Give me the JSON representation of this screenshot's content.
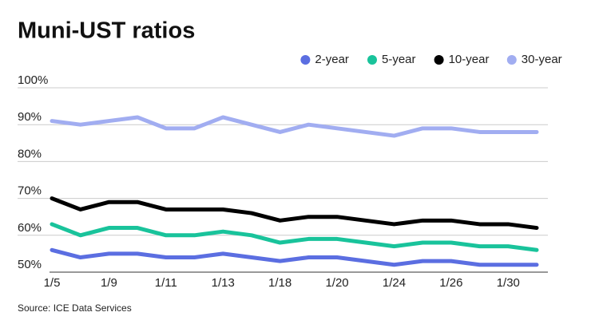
{
  "chart_data": {
    "type": "line",
    "title": "Muni-UST ratios",
    "source": "Source: ICE Data Services",
    "categories": [
      "1/5",
      null,
      "1/9",
      null,
      "1/11",
      null,
      "1/13",
      null,
      "1/18",
      null,
      "1/20",
      null,
      "1/24",
      null,
      "1/26",
      null,
      "1/30",
      null
    ],
    "series": [
      {
        "name": "2-year",
        "color": "#5b6ee1",
        "values": [
          56,
          54,
          55,
          55,
          54,
          54,
          55,
          54,
          53,
          54,
          54,
          53,
          52,
          53,
          53,
          52,
          52,
          52
        ]
      },
      {
        "name": "5-year",
        "color": "#19c39b",
        "values": [
          63,
          60,
          62,
          62,
          60,
          60,
          61,
          60,
          58,
          59,
          59,
          58,
          57,
          58,
          58,
          57,
          57,
          56
        ]
      },
      {
        "name": "10-year",
        "color": "#000000",
        "values": [
          70,
          67,
          69,
          69,
          67,
          67,
          67,
          66,
          64,
          65,
          65,
          64,
          63,
          64,
          64,
          63,
          63,
          62
        ]
      },
      {
        "name": "30-year",
        "color": "#a1adf1",
        "values": [
          91,
          90,
          91,
          92,
          89,
          89,
          92,
          90,
          88,
          90,
          89,
          88,
          87,
          89,
          89,
          88,
          88,
          88
        ]
      }
    ],
    "ylim": [
      50,
      100
    ],
    "yticks": [
      {
        "value": 50,
        "label": "50%"
      },
      {
        "value": 60,
        "label": "60%"
      },
      {
        "value": 70,
        "label": "70%"
      },
      {
        "value": 80,
        "label": "80%"
      },
      {
        "value": 90,
        "label": "90%"
      },
      {
        "value": 100,
        "label": "100%"
      }
    ],
    "grid": true,
    "legend": "top-right"
  }
}
